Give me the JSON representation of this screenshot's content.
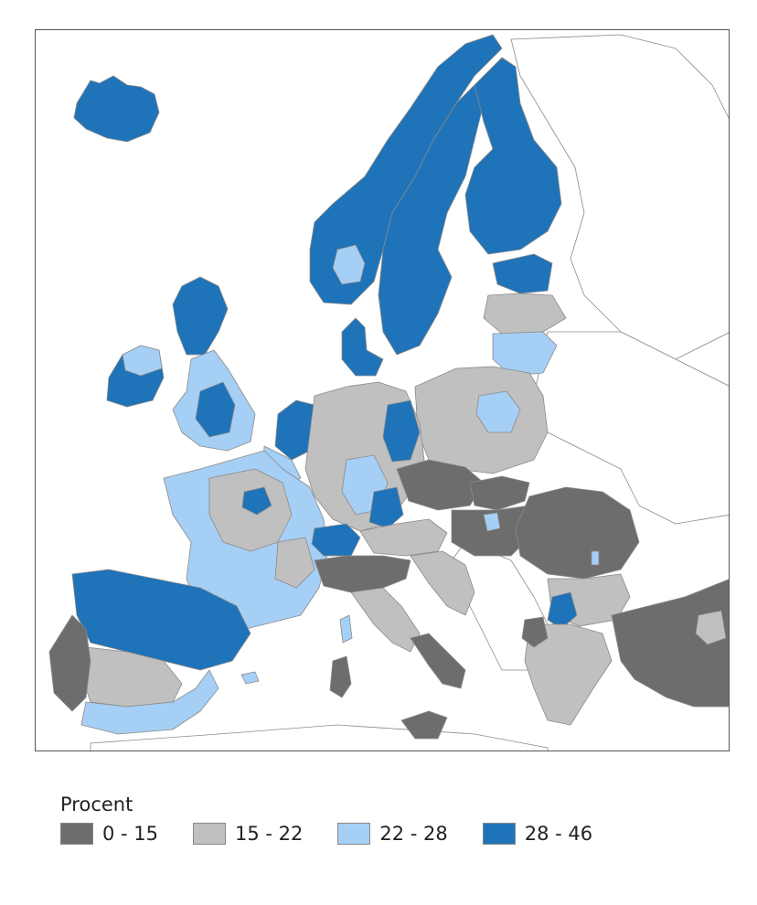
{
  "legend": {
    "title": "Procent",
    "classes": [
      {
        "label": "0 - 15",
        "color": "#6d6d6d"
      },
      {
        "label": "15 - 22",
        "color": "#c0c0c0"
      },
      {
        "label": "22 - 28",
        "color": "#a6cff5"
      },
      {
        "label": "28 - 46",
        "color": "#1f73b8"
      }
    ]
  },
  "map": {
    "background_color": "#ffffff",
    "outline_color": "#8a8a8a"
  }
}
